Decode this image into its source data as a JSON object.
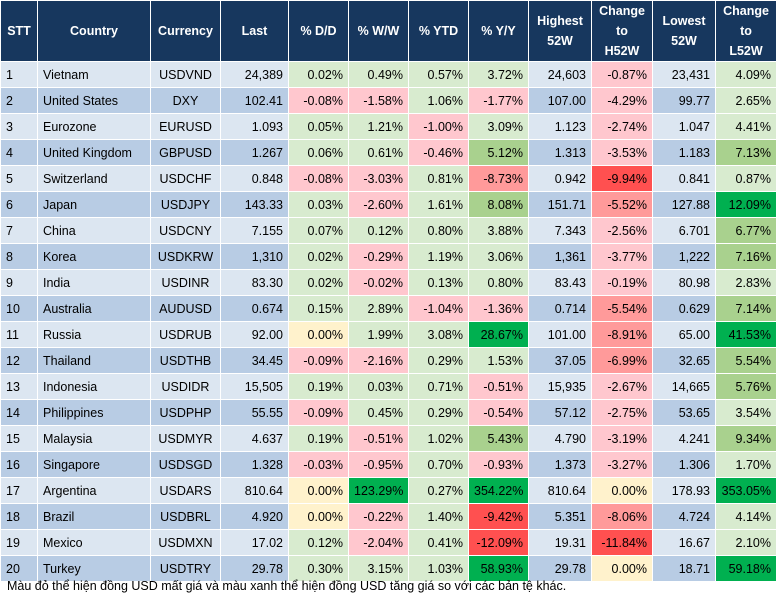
{
  "headers": {
    "stt": "STT",
    "country": "Country",
    "currency": "Currency",
    "last": "Last",
    "dd": "% D/D",
    "ww": "% W/W",
    "ytd": "% YTD",
    "yy": "% Y/Y",
    "high_1": "Highest",
    "high_2": "52W",
    "chh_1": "Change",
    "chh_2": "to",
    "chh_3": "H52W",
    "low_1": "Lowest",
    "low_2": "52W",
    "chl_1": "Change",
    "chl_2": "to",
    "chl_3": "L52W"
  },
  "colors": {
    "green_light": "#d8ebcf",
    "green_mid": "#a9d18e",
    "green_strong": "#00b050",
    "red_light": "#ffc7ce",
    "red_mid": "#ff9a9a",
    "red_strong": "#ff5050",
    "neutral": "#fff2cc"
  },
  "rows": [
    {
      "stt": "1",
      "country": "Vietnam",
      "currency": "USDVND",
      "last": "24,389",
      "dd": "0.02%",
      "ww": "0.49%",
      "ytd": "0.57%",
      "yy": "3.72%",
      "high": "24,603",
      "chh": "-0.87%",
      "low": "23,431",
      "chl": "4.09%"
    },
    {
      "stt": "2",
      "country": "United States",
      "currency": "DXY",
      "last": "102.41",
      "dd": "-0.08%",
      "ww": "-1.58%",
      "ytd": "1.06%",
      "yy": "-1.77%",
      "high": "107.00",
      "chh": "-4.29%",
      "low": "99.77",
      "chl": "2.65%"
    },
    {
      "stt": "3",
      "country": "Eurozone",
      "currency": "EURUSD",
      "last": "1.093",
      "dd": "0.05%",
      "ww": "1.21%",
      "ytd": "-1.00%",
      "yy": "3.09%",
      "high": "1.123",
      "chh": "-2.74%",
      "low": "1.047",
      "chl": "4.41%"
    },
    {
      "stt": "4",
      "country": "United Kingdom",
      "currency": "GBPUSD",
      "last": "1.267",
      "dd": "0.06%",
      "ww": "0.61%",
      "ytd": "-0.46%",
      "yy": "5.12%",
      "high": "1.313",
      "chh": "-3.53%",
      "low": "1.183",
      "chl": "7.13%"
    },
    {
      "stt": "5",
      "country": "Switzerland",
      "currency": "USDCHF",
      "last": "0.848",
      "dd": "-0.08%",
      "ww": "-3.03%",
      "ytd": "0.81%",
      "yy": "-8.73%",
      "high": "0.942",
      "chh": "-9.94%",
      "low": "0.841",
      "chl": "0.87%"
    },
    {
      "stt": "6",
      "country": "Japan",
      "currency": "USDJPY",
      "last": "143.33",
      "dd": "0.03%",
      "ww": "-2.60%",
      "ytd": "1.61%",
      "yy": "8.08%",
      "high": "151.71",
      "chh": "-5.52%",
      "low": "127.88",
      "chl": "12.09%"
    },
    {
      "stt": "7",
      "country": "China",
      "currency": "USDCNY",
      "last": "7.155",
      "dd": "0.07%",
      "ww": "0.12%",
      "ytd": "0.80%",
      "yy": "3.88%",
      "high": "7.343",
      "chh": "-2.56%",
      "low": "6.701",
      "chl": "6.77%"
    },
    {
      "stt": "8",
      "country": "Korea",
      "currency": "USDKRW",
      "last": "1,310",
      "dd": "0.02%",
      "ww": "-0.29%",
      "ytd": "1.19%",
      "yy": "3.06%",
      "high": "1,361",
      "chh": "-3.77%",
      "low": "1,222",
      "chl": "7.16%"
    },
    {
      "stt": "9",
      "country": "India",
      "currency": "USDINR",
      "last": "83.30",
      "dd": "0.02%",
      "ww": "-0.02%",
      "ytd": "0.13%",
      "yy": "0.80%",
      "high": "83.43",
      "chh": "-0.19%",
      "low": "80.98",
      "chl": "2.83%"
    },
    {
      "stt": "10",
      "country": "Australia",
      "currency": "AUDUSD",
      "last": "0.674",
      "dd": "0.15%",
      "ww": "2.89%",
      "ytd": "-1.04%",
      "yy": "-1.36%",
      "high": "0.714",
      "chh": "-5.54%",
      "low": "0.629",
      "chl": "7.14%"
    },
    {
      "stt": "11",
      "country": "Russia",
      "currency": "USDRUB",
      "last": "92.00",
      "dd": "0.00%",
      "ww": "1.99%",
      "ytd": "3.08%",
      "yy": "28.67%",
      "high": "101.00",
      "chh": "-8.91%",
      "low": "65.00",
      "chl": "41.53%"
    },
    {
      "stt": "12",
      "country": "Thailand",
      "currency": "USDTHB",
      "last": "34.45",
      "dd": "-0.09%",
      "ww": "-2.16%",
      "ytd": "0.29%",
      "yy": "1.53%",
      "high": "37.05",
      "chh": "-6.99%",
      "low": "32.65",
      "chl": "5.54%"
    },
    {
      "stt": "13",
      "country": "Indonesia",
      "currency": "USDIDR",
      "last": "15,505",
      "dd": "0.19%",
      "ww": "0.03%",
      "ytd": "0.71%",
      "yy": "-0.51%",
      "high": "15,935",
      "chh": "-2.67%",
      "low": "14,665",
      "chl": "5.76%"
    },
    {
      "stt": "14",
      "country": "Philippines",
      "currency": "USDPHP",
      "last": "55.55",
      "dd": "-0.09%",
      "ww": "0.45%",
      "ytd": "0.29%",
      "yy": "-0.54%",
      "high": "57.12",
      "chh": "-2.75%",
      "low": "53.65",
      "chl": "3.54%"
    },
    {
      "stt": "15",
      "country": "Malaysia",
      "currency": "USDMYR",
      "last": "4.637",
      "dd": "0.19%",
      "ww": "-0.51%",
      "ytd": "1.02%",
      "yy": "5.43%",
      "high": "4.790",
      "chh": "-3.19%",
      "low": "4.241",
      "chl": "9.34%"
    },
    {
      "stt": "16",
      "country": "Singapore",
      "currency": "USDSGD",
      "last": "1.328",
      "dd": "-0.03%",
      "ww": "-0.95%",
      "ytd": "0.70%",
      "yy": "-0.93%",
      "high": "1.373",
      "chh": "-3.27%",
      "low": "1.306",
      "chl": "1.70%"
    },
    {
      "stt": "17",
      "country": "Argentina",
      "currency": "USDARS",
      "last": "810.64",
      "dd": "0.00%",
      "ww": "123.29%",
      "ytd": "0.27%",
      "yy": "354.22%",
      "high": "810.64",
      "chh": "0.00%",
      "low": "178.93",
      "chl": "353.05%"
    },
    {
      "stt": "18",
      "country": "Brazil",
      "currency": "USDBRL",
      "last": "4.920",
      "dd": "0.00%",
      "ww": "-0.22%",
      "ytd": "1.40%",
      "yy": "-9.42%",
      "high": "5.351",
      "chh": "-8.06%",
      "low": "4.724",
      "chl": "4.14%"
    },
    {
      "stt": "19",
      "country": "Mexico",
      "currency": "USDMXN",
      "last": "17.02",
      "dd": "0.12%",
      "ww": "-2.04%",
      "ytd": "0.41%",
      "yy": "-12.09%",
      "high": "19.31",
      "chh": "-11.84%",
      "low": "16.67",
      "chl": "2.10%"
    },
    {
      "stt": "20",
      "country": "Turkey",
      "currency": "USDTRY",
      "last": "29.78",
      "dd": "0.30%",
      "ww": "3.15%",
      "ytd": "1.03%",
      "yy": "58.93%",
      "high": "29.78",
      "chh": "0.00%",
      "low": "18.71",
      "chl": "59.18%"
    }
  ],
  "footnote": "Màu đỏ thể hiện đồng USD mất giá và màu xanh thể hiện đồng USD tăng giá so với các bản tệ khác."
}
